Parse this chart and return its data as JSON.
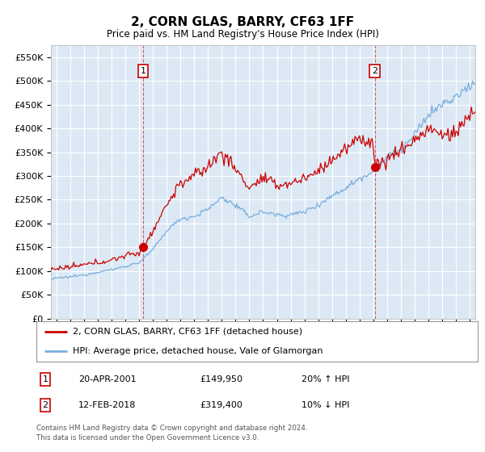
{
  "title": "2, CORN GLAS, BARRY, CF63 1FF",
  "subtitle": "Price paid vs. HM Land Registry's House Price Index (HPI)",
  "sale1_date": "20-APR-2001",
  "sale1_price": 149950,
  "sale1_hpi": "20% ↑ HPI",
  "sale2_date": "12-FEB-2018",
  "sale2_price": 319400,
  "sale2_hpi": "10% ↓ HPI",
  "sale1_x": 2001.3,
  "sale2_x": 2018.1,
  "red_line_color": "#cc0000",
  "blue_line_color": "#7aadde",
  "grid_color": "#ffffff",
  "plot_bg_color": "#dce9f5",
  "legend_label_red": "2, CORN GLAS, BARRY, CF63 1FF (detached house)",
  "legend_label_blue": "HPI: Average price, detached house, Vale of Glamorgan",
  "footer_text": "Contains HM Land Registry data © Crown copyright and database right 2024.\nThis data is licensed under the Open Government Licence v3.0.",
  "ylim": [
    0,
    575000
  ],
  "yticks": [
    0,
    50000,
    100000,
    150000,
    200000,
    250000,
    300000,
    350000,
    400000,
    450000,
    500000,
    550000
  ],
  "xlim_start": 1994.6,
  "xlim_end": 2025.4,
  "hpi_anchors": {
    "1994.5": 82000,
    "1995.0": 85000,
    "1996.0": 88000,
    "1997.0": 92000,
    "1998.0": 98000,
    "1999.0": 103000,
    "2000.0": 110000,
    "2001.0": 118000,
    "2002.0": 145000,
    "2003.0": 185000,
    "2004.0": 210000,
    "2005.0": 215000,
    "2006.0": 230000,
    "2007.0": 255000,
    "2008.0": 238000,
    "2009.0": 215000,
    "2010.0": 225000,
    "2011.0": 218000,
    "2012.0": 218000,
    "2013.0": 225000,
    "2014.0": 240000,
    "2015.0": 258000,
    "2016.0": 275000,
    "2017.0": 295000,
    "2018.0": 310000,
    "2019.0": 340000,
    "2020.0": 355000,
    "2021.0": 385000,
    "2022.0": 430000,
    "2023.0": 450000,
    "2024.0": 465000,
    "2025.0": 490000,
    "2025.4": 495000
  },
  "red_anchors": {
    "1994.5": 103000,
    "1995.0": 105000,
    "1996.0": 108000,
    "1997.0": 113000,
    "1998.0": 118000,
    "1999.0": 123000,
    "2000.0": 133000,
    "2001.0": 138000,
    "2001.3": 149950,
    "2002.0": 185000,
    "2003.0": 240000,
    "2004.0": 285000,
    "2005.0": 300000,
    "2006.0": 320000,
    "2007.0": 350000,
    "2008.0": 315000,
    "2009.0": 275000,
    "2010.0": 295000,
    "2011.0": 280000,
    "2012.0": 285000,
    "2013.0": 295000,
    "2014.0": 310000,
    "2015.0": 335000,
    "2016.0": 355000,
    "2017.0": 380000,
    "2018.0": 370000,
    "2018.1": 319400,
    "2019.0": 335000,
    "2020.0": 355000,
    "2021.0": 375000,
    "2022.0": 400000,
    "2023.0": 385000,
    "2024.0": 390000,
    "2025.0": 430000,
    "2025.4": 435000
  }
}
